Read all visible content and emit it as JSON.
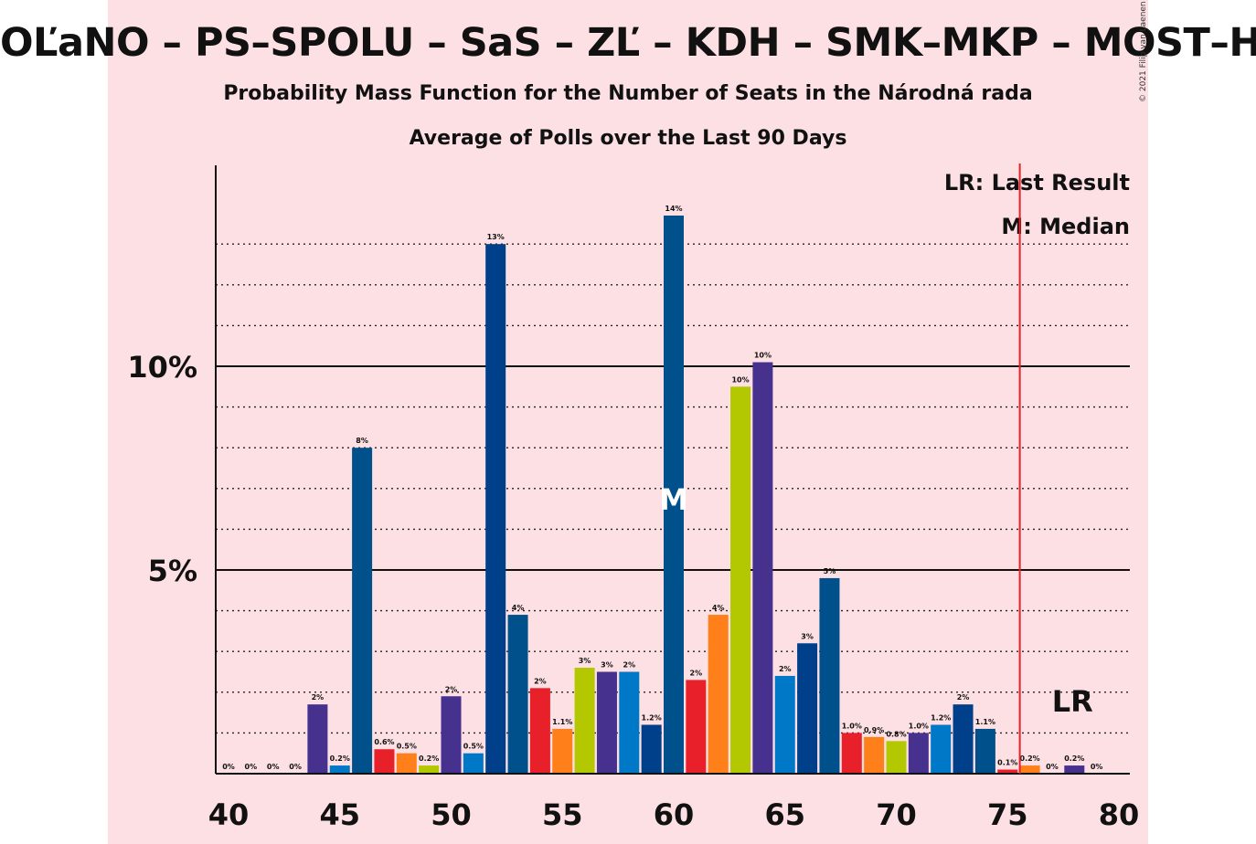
{
  "title": "OĽaNO – PS–SPOLU – SaS – ZĽ – KDH – SMK–MKP – MOST–HÍD",
  "subtitle1": "Probability Mass Function for the Number of Seats in the Národná rada",
  "subtitle2": "Average of Polls over the Last 90 Days",
  "legend": {
    "last_result": "LR: Last Result",
    "median": "M: Median"
  },
  "copyright": "© 2021 Filip van Laenen",
  "colors": {
    "background_band": "#fde0e3",
    "last_result_line": "#e8202a"
  },
  "chart_data": {
    "type": "bar",
    "x": [
      40,
      41,
      42,
      43,
      44,
      45,
      46,
      47,
      48,
      49,
      50,
      51,
      52,
      53,
      54,
      55,
      56,
      57,
      58,
      59,
      60,
      61,
      62,
      63,
      64,
      65,
      66,
      67,
      68,
      69,
      70,
      71,
      72,
      73,
      74,
      75,
      76,
      77,
      78,
      79
    ],
    "values": [
      0,
      0,
      0,
      0,
      1.7,
      0.2,
      8.0,
      0.6,
      0.5,
      0.2,
      1.9,
      0.5,
      13.0,
      3.9,
      2.1,
      1.1,
      2.6,
      2.5,
      2.5,
      1.2,
      13.7,
      2.3,
      3.9,
      9.5,
      10.1,
      2.4,
      3.2,
      4.8,
      1.0,
      0.9,
      0.8,
      1.0,
      1.2,
      1.7,
      1.1,
      0.1,
      0.2,
      0,
      0.2,
      0
    ],
    "labels": [
      "0%",
      "0%",
      "0%",
      "0%",
      "2%",
      "0.2%",
      "8%",
      "0.6%",
      "0.5%",
      "0.2%",
      "2%",
      "0.5%",
      "13%",
      "4%",
      "2%",
      "1.1%",
      "3%",
      "3%",
      "2%",
      "1.2%",
      "14%",
      "2%",
      "4%",
      "10%",
      "10%",
      "2%",
      "3%",
      "5%",
      "1.0%",
      "0.9%",
      "0.8%",
      "1.0%",
      "1.2%",
      "2%",
      "1.1%",
      "0.1%",
      "0.2%",
      "0%",
      "0.2%",
      "0%"
    ],
    "colors": [
      "#0078c8",
      "#e8202a",
      "#ff7f1a",
      "#b3c800",
      "#46318e",
      "#0078c8",
      "#00508c",
      "#e8202a",
      "#ff7f1a",
      "#b3c800",
      "#46318e",
      "#0078c8",
      "#003f8a",
      "#00508c",
      "#e8202a",
      "#ff7f1a",
      "#b3c800",
      "#46318e",
      "#0078c8",
      "#003f8a",
      "#00508c",
      "#e8202a",
      "#ff7f1a",
      "#b3c800",
      "#46318e",
      "#0078c8",
      "#003f8a",
      "#00508c",
      "#e8202a",
      "#ff7f1a",
      "#b3c800",
      "#46318e",
      "#0078c8",
      "#003f8a",
      "#00508c",
      "#e8202a",
      "#ff7f1a",
      "#b3c800",
      "#46318e",
      "#0078c8"
    ],
    "x_ticks": [
      40,
      45,
      50,
      55,
      60,
      65,
      70,
      75,
      80
    ],
    "y_ticks": [
      {
        "value": 5,
        "label": "5%"
      },
      {
        "value": 10,
        "label": "10%"
      }
    ],
    "minor_gridlines": [
      1,
      2,
      3,
      4,
      6,
      7,
      8,
      9,
      11,
      12,
      13
    ],
    "xlim": [
      39.5,
      80.5
    ],
    "ylim": [
      0,
      15
    ],
    "median": 60,
    "median_label": "M",
    "last_result": 76,
    "last_result_label": "LR",
    "grid": true,
    "legend_position": "top-right"
  }
}
